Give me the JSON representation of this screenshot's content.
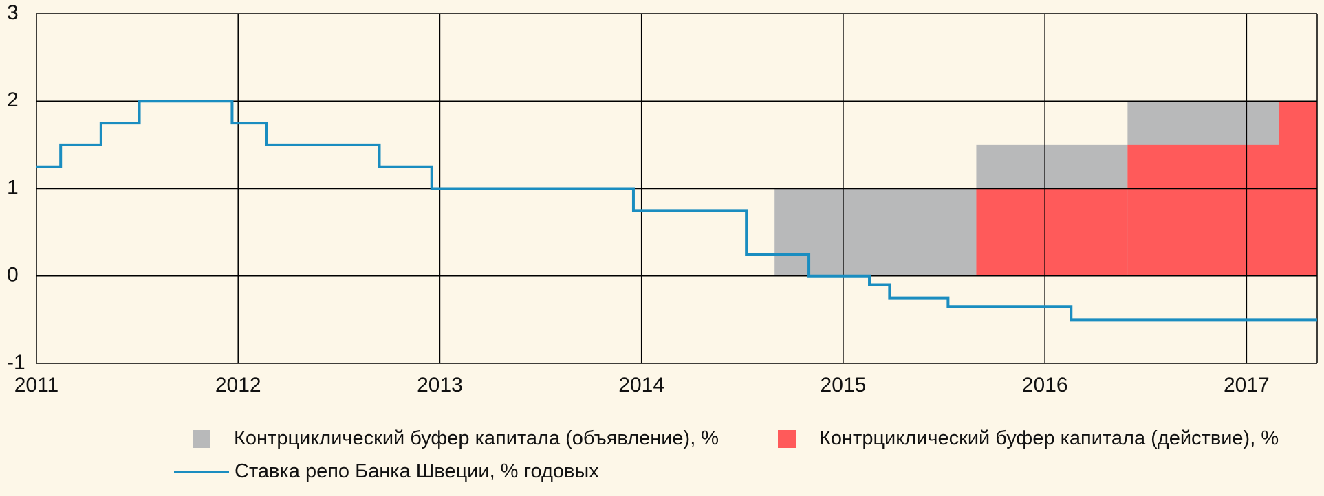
{
  "chart_data": {
    "type": "area",
    "title": "",
    "xlabel": "",
    "ylabel": "",
    "xlim": [
      2011,
      2017.35
    ],
    "ylim": [
      -1,
      3
    ],
    "x_ticks": [
      2011,
      2012,
      2013,
      2014,
      2015,
      2016,
      2017
    ],
    "x_tick_labels": [
      "2011",
      "2012",
      "2013",
      "2014",
      "2015",
      "2016",
      "2017"
    ],
    "y_ticks": [
      -1,
      0,
      1,
      2,
      3
    ],
    "y_tick_labels": [
      "-1",
      "0",
      "1",
      "2",
      "3"
    ],
    "grid": true,
    "legend_position": "bottom",
    "series": [
      {
        "name": "Контрциклический буфер капитала (объявление), %",
        "kind": "step-area",
        "color": "#b8b9ba",
        "points": [
          [
            2014.66,
            1.0
          ],
          [
            2015.66,
            1.5
          ],
          [
            2016.41,
            2.0
          ],
          [
            2017.35,
            2.0
          ]
        ]
      },
      {
        "name": "Контрциклический буфер капитала (действие), %",
        "kind": "step-area",
        "color": "#ff5a5a",
        "points": [
          [
            2015.66,
            1.0
          ],
          [
            2016.41,
            1.5
          ],
          [
            2017.16,
            2.0
          ],
          [
            2017.35,
            2.0
          ]
        ]
      },
      {
        "name": "Ставка репо Банка Швеции, % годовых",
        "kind": "step-line",
        "color": "#1a8dc0",
        "points": [
          [
            2011.0,
            1.25
          ],
          [
            2011.12,
            1.5
          ],
          [
            2011.32,
            1.75
          ],
          [
            2011.51,
            2.0
          ],
          [
            2011.97,
            1.75
          ],
          [
            2012.14,
            1.5
          ],
          [
            2012.7,
            1.25
          ],
          [
            2012.96,
            1.0
          ],
          [
            2013.96,
            0.75
          ],
          [
            2014.52,
            0.25
          ],
          [
            2014.83,
            0.0
          ],
          [
            2015.13,
            -0.1
          ],
          [
            2015.23,
            -0.25
          ],
          [
            2015.52,
            -0.35
          ],
          [
            2016.13,
            -0.5
          ],
          [
            2017.35,
            -0.5
          ]
        ]
      }
    ]
  },
  "legend": {
    "items": [
      {
        "label": "Контрциклический буфер капитала (объявление), %",
        "color": "#b8b9ba"
      },
      {
        "label": "Контрциклический буфер капитала (действие), %",
        "color": "#ff5a5a"
      },
      {
        "label": "Ставка репо Банка Швеции, % годовых",
        "color": "#1a8dc0"
      }
    ]
  }
}
